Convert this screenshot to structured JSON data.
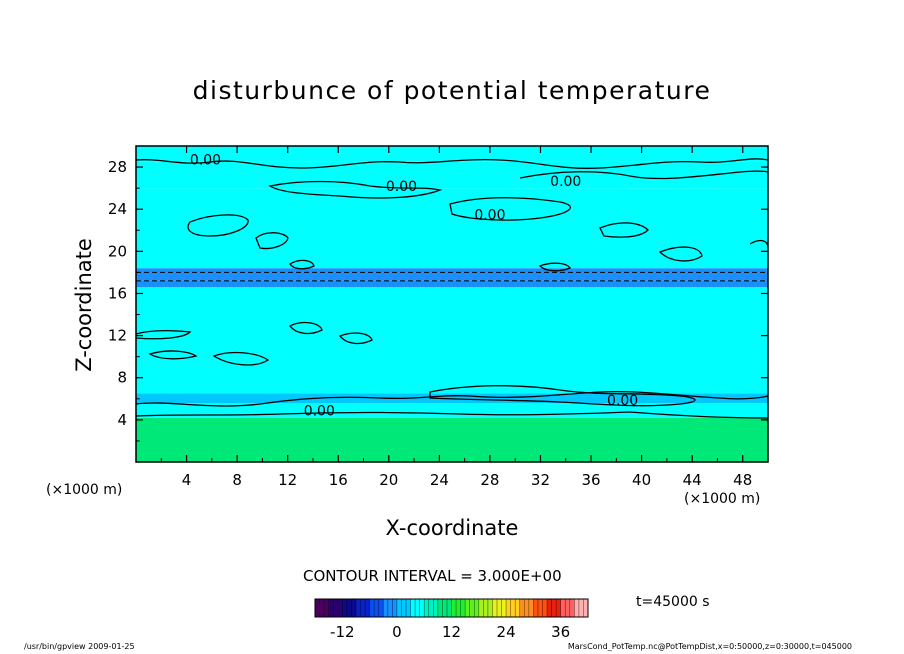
{
  "chart_data": {
    "type": "heatmap",
    "title": "disturbunce of potential temperature",
    "xlabel": "X-coordinate",
    "ylabel": "Z-coordinate",
    "x_unit": "(×1000 m)",
    "z_unit": "(×1000 m)",
    "xlim": [
      0,
      50
    ],
    "ylim": [
      0,
      30
    ],
    "x_ticks": [
      4,
      8,
      12,
      16,
      20,
      24,
      28,
      32,
      36,
      40,
      44,
      48
    ],
    "y_ticks": [
      4,
      8,
      12,
      16,
      20,
      24,
      28
    ],
    "contour_interval_label": "CONTOUR INTERVAL = 3.000E+00",
    "contour_value_label": "0.00",
    "contour_labels": [
      {
        "x": 5.5,
        "z": 28.7
      },
      {
        "x": 21.0,
        "z": 26.2
      },
      {
        "x": 34.0,
        "z": 26.7
      },
      {
        "x": 28.0,
        "z": 23.5
      },
      {
        "x": 14.5,
        "z": 4.9
      },
      {
        "x": 38.5,
        "z": 5.9
      }
    ],
    "bands": [
      {
        "z0": 0,
        "z1": 4.2,
        "value": 9
      },
      {
        "z0": 4.2,
        "z1": 5.6,
        "value": 4
      },
      {
        "z0": 5.6,
        "z1": 6.5,
        "value": 2
      },
      {
        "z0": 6.5,
        "z1": 16.6,
        "value": 3
      },
      {
        "z0": 16.6,
        "z1": 17.2,
        "value": -1
      },
      {
        "z0": 17.2,
        "z1": 18.4,
        "value": -2
      },
      {
        "z0": 18.4,
        "z1": 26.0,
        "value": 3
      },
      {
        "z0": 26.0,
        "z1": 28.5,
        "value": 5
      },
      {
        "z0": 28.5,
        "z1": 30,
        "value": 3
      }
    ],
    "colorbar": {
      "ticks": [
        -12,
        0,
        12,
        24,
        36
      ],
      "range": [
        -18,
        42
      ],
      "colors": [
        "#4b0060",
        "#2a006e",
        "#0a0a8a",
        "#0a20c8",
        "#0a50f0",
        "#1a90ff",
        "#00c8ff",
        "#00ffff",
        "#00f0c0",
        "#00e878",
        "#20ee30",
        "#60f020",
        "#a8f020",
        "#e8f020",
        "#ffd020",
        "#ff9020",
        "#ff5010",
        "#e82010",
        "#ff6060",
        "#ffb0b0"
      ]
    },
    "time_label": "t=45000 s"
  },
  "footer": {
    "left": "/usr/bin/gpview   2009-01-25",
    "right": "MarsCond_PotTemp.nc@PotTempDist,x=0:50000,z=0:30000,t=045000"
  }
}
